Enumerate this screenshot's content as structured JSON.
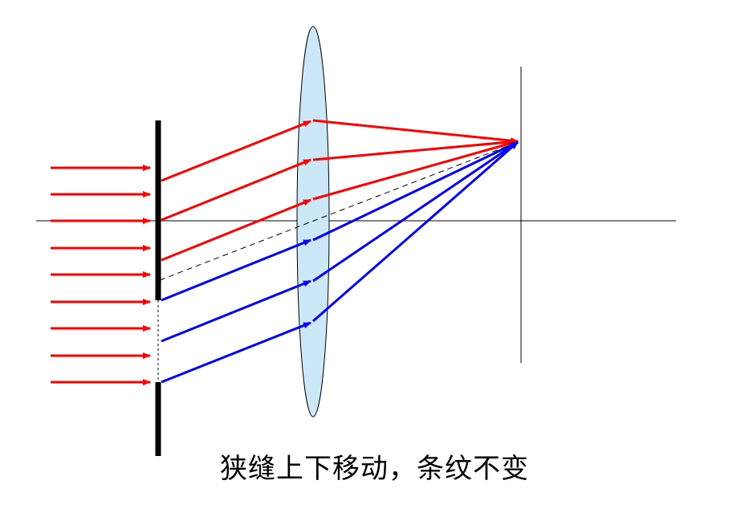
{
  "caption": "狭缝上下移动，条纹不变",
  "colors": {
    "incident_ray": "#ff0000",
    "upper_beam": "#ff0000",
    "lower_beam": "#0000ff",
    "lens_fill": "#cce8f8",
    "lens_stroke": "#000000",
    "screen": "#000000",
    "axis": "#000000",
    "chief_ray": "#000000"
  },
  "icons": {
    "arrowhead": "triangle-arrowhead"
  }
}
